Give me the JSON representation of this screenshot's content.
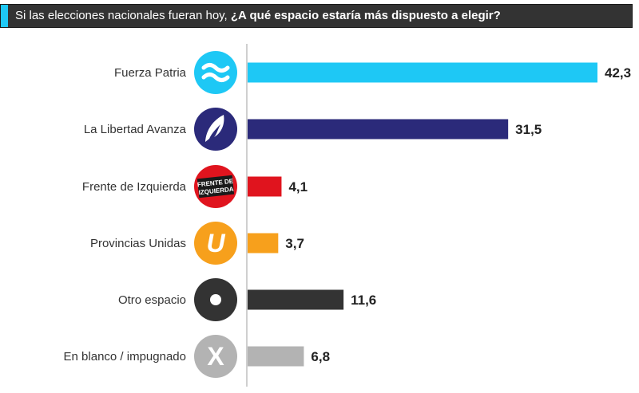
{
  "header": {
    "lead": "Si las elecciones nacionales fueran hoy,",
    "question": "¿A qué espacio estaría más dispuesto a elegir?"
  },
  "chart_data": {
    "type": "bar",
    "orientation": "horizontal",
    "title": "Si las elecciones nacionales fueran hoy, ¿A qué espacio estaría más dispuesto a elegir?",
    "categories": [
      "Fuerza Patria",
      "La Libertad Avanza",
      "Frente de Izquierda",
      "Provincias Unidas",
      "Otro espacio",
      "En blanco / impugnado"
    ],
    "values": [
      42.3,
      31.5,
      4.1,
      3.7,
      11.6,
      6.8
    ],
    "value_labels": [
      "42,3",
      "31,5",
      "4,1",
      "3,7",
      "11,6",
      "6,8"
    ],
    "colors": [
      "#1ec8f5",
      "#2b2a7a",
      "#e0141e",
      "#f7a01c",
      "#333333",
      "#b3b3b3"
    ],
    "icons": [
      "fuerza-patria-logo-icon",
      "libertad-avanza-logo-icon",
      "frente-izquierda-logo-icon",
      "provincias-unidas-logo-icon",
      "otro-espacio-icon",
      "blank-x-icon"
    ],
    "xlim": [
      0,
      42.3
    ]
  },
  "logos": {
    "frente_line1": "FRENTE DE",
    "frente_line2": "IZQUIERDA",
    "provincias_letter": "U",
    "blank_letter": "X"
  }
}
